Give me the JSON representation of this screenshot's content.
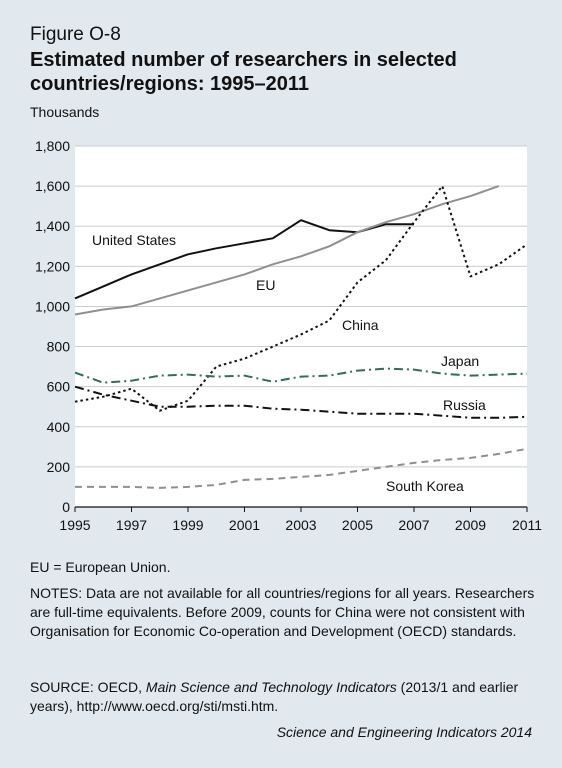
{
  "figure_label": "Figure O-8",
  "title": "Estimated number of researchers in selected countries/regions: 1995–2011",
  "units_label": "Thousands",
  "eu_note": "EU = European Union.",
  "notes": "NOTES: Data are not available for all countries/regions for all years. Researchers are full-time equivalents. Before 2009, counts for China were not consistent with Organisation for Economic Co-operation and Development (OECD) standards.",
  "source": {
    "prefix": "SOURCE: OECD, ",
    "publication": "Main Science and Technology Indicators",
    "suffix": " (2013/1 and earlier years), http://www.oecd.org/sti/msti.htm."
  },
  "credit": "Science and Engineering Indicators 2014",
  "chart_data": {
    "type": "line",
    "xlim": [
      1995,
      2011
    ],
    "ylim": [
      0,
      1800
    ],
    "xticks": [
      "1995",
      "1997",
      "1999",
      "2001",
      "2003",
      "2005",
      "2007",
      "2009",
      "2011"
    ],
    "yticks": [
      "0",
      "200",
      "400",
      "600",
      "800",
      "1,000",
      "1,200",
      "1,400",
      "1,600",
      "1,800"
    ],
    "grid": true,
    "series": [
      {
        "name": "United States",
        "color": "#111111",
        "style": "solid",
        "x": [
          1995,
          1996,
          1997,
          1998,
          1999,
          2000,
          2001,
          2002,
          2003,
          2004,
          2005,
          2006,
          2007
        ],
        "y": [
          1040,
          1100,
          1160,
          1210,
          1260,
          1290,
          1315,
          1340,
          1430,
          1380,
          1370,
          1410,
          1410
        ]
      },
      {
        "name": "EU",
        "color": "#8f8f8f",
        "style": "solid",
        "x": [
          1995,
          1996,
          1997,
          1998,
          1999,
          2000,
          2001,
          2002,
          2003,
          2004,
          2005,
          2006,
          2007,
          2008,
          2009,
          2010
        ],
        "y": [
          960,
          985,
          1000,
          1040,
          1080,
          1120,
          1160,
          1210,
          1250,
          1300,
          1370,
          1420,
          1460,
          1510,
          1550,
          1600
        ]
      },
      {
        "name": "China",
        "color": "#111111",
        "style": "dotted",
        "x": [
          1995,
          1996,
          1997,
          1998,
          1999,
          2000,
          2001,
          2002,
          2003,
          2004,
          2005,
          2006,
          2007,
          2008,
          2009,
          2010,
          2011
        ],
        "y": [
          525,
          550,
          590,
          480,
          530,
          700,
          740,
          800,
          860,
          930,
          1120,
          1230,
          1420,
          1600,
          1150,
          1210,
          1310
        ]
      },
      {
        "name": "Japan",
        "color": "#2f6f5a",
        "style": "dashdot",
        "x": [
          1995,
          1996,
          1997,
          1998,
          1999,
          2000,
          2001,
          2002,
          2003,
          2004,
          2005,
          2006,
          2007,
          2008,
          2009,
          2010,
          2011
        ],
        "y": [
          670,
          620,
          630,
          655,
          660,
          650,
          655,
          625,
          650,
          655,
          680,
          690,
          685,
          665,
          655,
          660,
          665
        ]
      },
      {
        "name": "Russia",
        "color": "#111111",
        "style": "dashdot",
        "x": [
          1995,
          1996,
          1997,
          1998,
          1999,
          2000,
          2001,
          2002,
          2003,
          2004,
          2005,
          2006,
          2007,
          2008,
          2009,
          2010,
          2011
        ],
        "y": [
          600,
          560,
          530,
          500,
          500,
          505,
          505,
          490,
          485,
          475,
          465,
          465,
          465,
          455,
          445,
          445,
          450
        ]
      },
      {
        "name": "South Korea",
        "color": "#8f8f8f",
        "style": "dashed",
        "x": [
          1995,
          1996,
          1997,
          1998,
          1999,
          2000,
          2001,
          2002,
          2003,
          2004,
          2005,
          2006,
          2007,
          2008,
          2009,
          2010,
          2011
        ],
        "y": [
          100,
          100,
          100,
          95,
          100,
          110,
          135,
          140,
          150,
          160,
          180,
          200,
          220,
          235,
          245,
          265,
          290
        ]
      }
    ]
  }
}
